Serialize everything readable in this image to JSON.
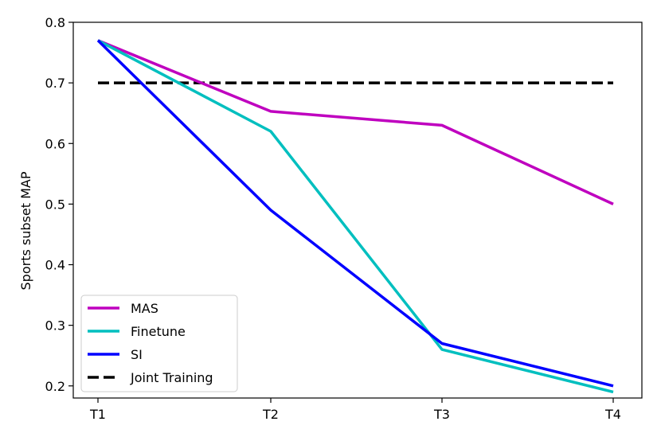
{
  "chart_data": {
    "type": "line",
    "title": "",
    "xlabel": "",
    "ylabel": "Sports subset MAP",
    "categories": [
      "T1",
      "T2",
      "T3",
      "T4"
    ],
    "ylim": [
      0.18,
      0.8
    ],
    "yticks": [
      0.2,
      0.3,
      0.4,
      0.5,
      0.6,
      0.7,
      0.8
    ],
    "ytick_labels": [
      "0.2",
      "0.3",
      "0.4",
      "0.5",
      "0.6",
      "0.7",
      "0.8"
    ],
    "grid": false,
    "legend_position": "lower-left",
    "series": [
      {
        "name": "MAS",
        "values": [
          0.77,
          0.653,
          0.63,
          0.5
        ],
        "color": "#bf00bf",
        "style": "solid"
      },
      {
        "name": "Finetune",
        "values": [
          0.77,
          0.62,
          0.26,
          0.19
        ],
        "color": "#00bfbf",
        "style": "solid"
      },
      {
        "name": "SI",
        "values": [
          0.77,
          0.49,
          0.27,
          0.2
        ],
        "color": "#0000ff",
        "style": "solid"
      },
      {
        "name": "Joint Training",
        "values": [
          0.7,
          0.7,
          0.7,
          0.7
        ],
        "color": "#000000",
        "style": "dashed"
      }
    ]
  }
}
